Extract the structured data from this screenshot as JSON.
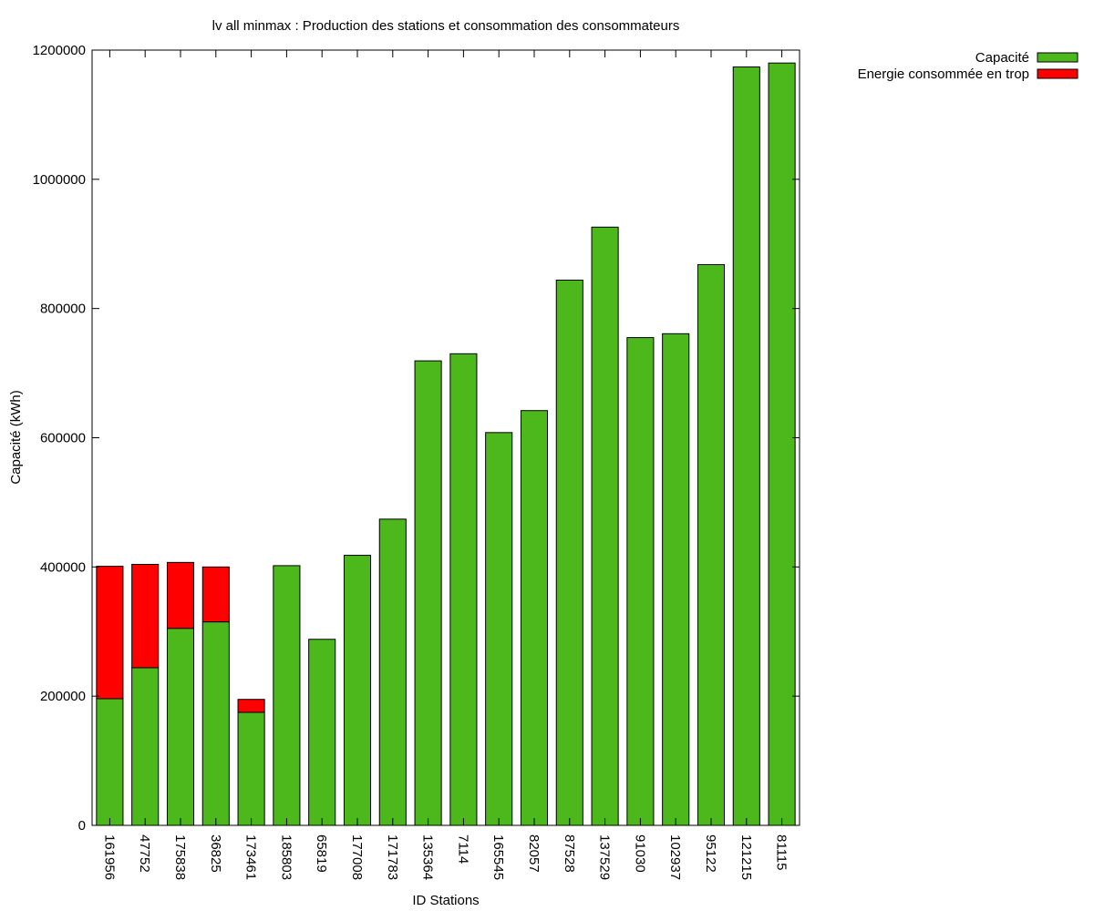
{
  "chart_data": {
    "type": "bar",
    "stacked": true,
    "title": "lv all minmax : Production des stations et consommation des consommateurs",
    "xlabel": "ID Stations",
    "ylabel": "Capacité (kWh)",
    "ylim": [
      0,
      1200000
    ],
    "yticks": [
      "0",
      "200000",
      "400000",
      "600000",
      "800000",
      "1000000",
      "1200000"
    ],
    "grid": false,
    "legend_position": "top-right",
    "categories": [
      "161956",
      "47752",
      "175838",
      "36825",
      "173461",
      "185803",
      "65819",
      "177008",
      "171783",
      "135364",
      "7114",
      "165545",
      "82057",
      "87528",
      "137529",
      "91030",
      "102937",
      "95122",
      "121215",
      "81115"
    ],
    "series": [
      {
        "name": "Capacité",
        "color": "#4db81c",
        "values": [
          196000,
          244000,
          305000,
          315000,
          175000,
          402000,
          288000,
          418000,
          474000,
          719000,
          730000,
          608000,
          642000,
          844000,
          926000,
          755000,
          761000,
          868000,
          1174000,
          1180000
        ]
      },
      {
        "name": "Energie consommée en trop",
        "color": "#ff0000",
        "values": [
          205000,
          160000,
          102000,
          85000,
          20000,
          0,
          0,
          0,
          0,
          0,
          0,
          0,
          0,
          0,
          0,
          0,
          0,
          0,
          0,
          0
        ]
      }
    ]
  }
}
